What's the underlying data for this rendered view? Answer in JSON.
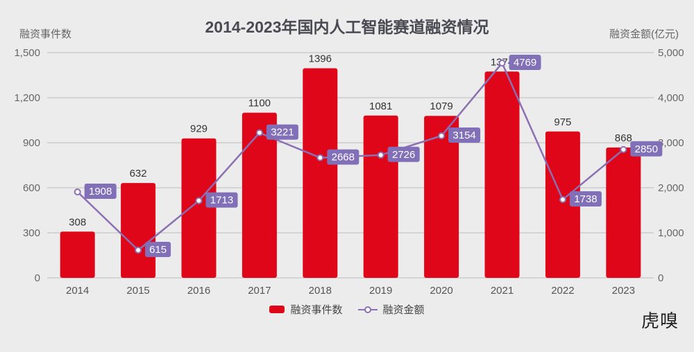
{
  "header": {
    "title": "2014-2023年国内人工智能赛道融资情况",
    "left_axis_title": "融资事件数",
    "right_axis_title": "融资金额(亿元)"
  },
  "legend": {
    "bar_label": "融资事件数",
    "line_label": "融资金额"
  },
  "watermark": "虎嗅",
  "colors": {
    "background": "#ececec",
    "bar": "#e0061a",
    "line": "#8a6fb3",
    "label_box": "#8170b8",
    "grid": "#bdbdbd",
    "text": "#555555"
  },
  "chart_data": {
    "type": "bar",
    "title": "2014-2023年国内人工智能赛道融资情况",
    "xlabel": "",
    "ylabel": "融资事件数",
    "y2label": "融资金额(亿元)",
    "categories": [
      "2014",
      "2015",
      "2016",
      "2017",
      "2018",
      "2019",
      "2020",
      "2021",
      "2022",
      "2023"
    ],
    "series": [
      {
        "name": "融资事件数",
        "type": "bar",
        "axis": "left",
        "values": [
          308,
          632,
          929,
          1100,
          1396,
          1081,
          1079,
          1374,
          975,
          868
        ]
      },
      {
        "name": "融资金额",
        "type": "line",
        "axis": "right",
        "values": [
          1908,
          615,
          1713,
          3221,
          2668,
          2726,
          3154,
          4769,
          1738,
          2850
        ]
      }
    ],
    "ylim": [
      0,
      1500
    ],
    "y2lim": [
      0,
      5000
    ],
    "left_ticks": [
      "0",
      "300",
      "600",
      "900",
      "1,200",
      "1,500"
    ],
    "right_ticks": [
      "0",
      "1,000",
      "2,000",
      "3,000",
      "4,000",
      "5,000"
    ],
    "grid": true,
    "legend_position": "bottom"
  }
}
